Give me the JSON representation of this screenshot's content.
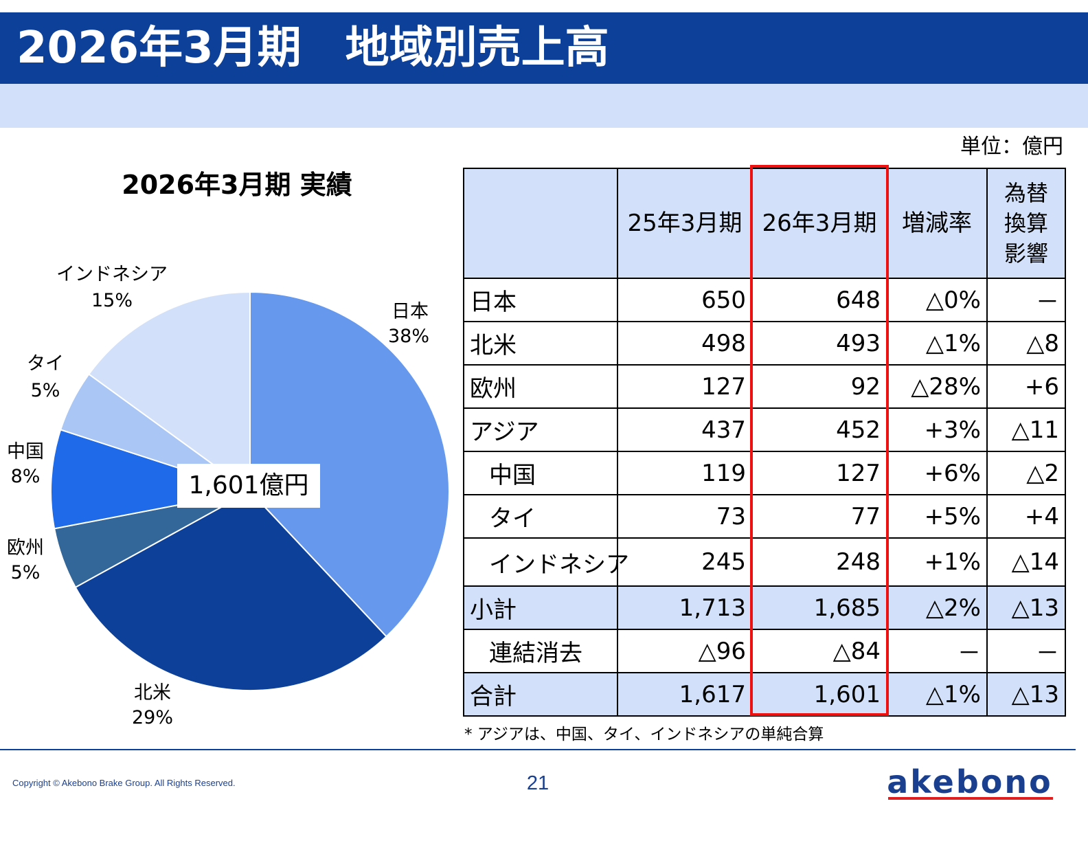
{
  "header": {
    "title": "2026年3月期　地域別売上高"
  },
  "unit": "単位：億円",
  "chart_title": "2026年3月期 実績",
  "chart_data": {
    "type": "pie",
    "total_label": "1,601億円",
    "slices": [
      {
        "name": "日本",
        "pct_label": "38%",
        "value": 38,
        "color": "#6699ee"
      },
      {
        "name": "北米",
        "pct_label": "29%",
        "value": 29,
        "color": "#0d4098"
      },
      {
        "name": "欧州",
        "pct_label": "5%",
        "value": 5,
        "color": "#336699"
      },
      {
        "name": "中国",
        "pct_label": "8%",
        "value": 8,
        "color": "#1e6ae8"
      },
      {
        "name": "タイ",
        "pct_label": "5%",
        "value": 5,
        "color": "#aac6f5"
      },
      {
        "name": "インドネシア",
        "pct_label": "15%",
        "value": 15,
        "color": "#d2e1f9"
      }
    ]
  },
  "table": {
    "headers": [
      "",
      "25年3月期",
      "26年3月期",
      "増減率",
      "為替\n換算\n影響"
    ],
    "rows": [
      {
        "name": "日本",
        "fy25": "650",
        "fy26": "648",
        "change": "△0%",
        "fx": "－"
      },
      {
        "name": "北米",
        "fy25": "498",
        "fy26": "493",
        "change": "△1%",
        "fx": "△8"
      },
      {
        "name": "欧州",
        "fy25": "127",
        "fy26": "92",
        "change": "△28%",
        "fx": "+6"
      },
      {
        "name": "アジア",
        "fy25": "437",
        "fy26": "452",
        "change": "+3%",
        "fx": "△11"
      },
      {
        "name": "中国",
        "fy25": "119",
        "fy26": "127",
        "change": "+6%",
        "fx": "△2"
      },
      {
        "name": "タイ",
        "fy25": "73",
        "fy26": "77",
        "change": "+5%",
        "fx": "+4"
      },
      {
        "name": "インドネシア",
        "fy25": "245",
        "fy26": "248",
        "change": "+1%",
        "fx": "△14"
      },
      {
        "name": "小計",
        "fy25": "1,713",
        "fy26": "1,685",
        "change": "△2%",
        "fx": "△13"
      },
      {
        "name": "連結消去",
        "fy25": "△96",
        "fy26": "△84",
        "change": "－",
        "fx": "－"
      },
      {
        "name": "合計",
        "fy25": "1,617",
        "fy26": "1,601",
        "change": "△1%",
        "fx": "△13"
      }
    ]
  },
  "footnote": "* アジアは、中国、タイ、インドネシアの単純合算",
  "footer": {
    "copyright": "Copyright © Akebono Brake Group. All Rights Reserved.",
    "page": "21",
    "logo_text": "akebono"
  }
}
